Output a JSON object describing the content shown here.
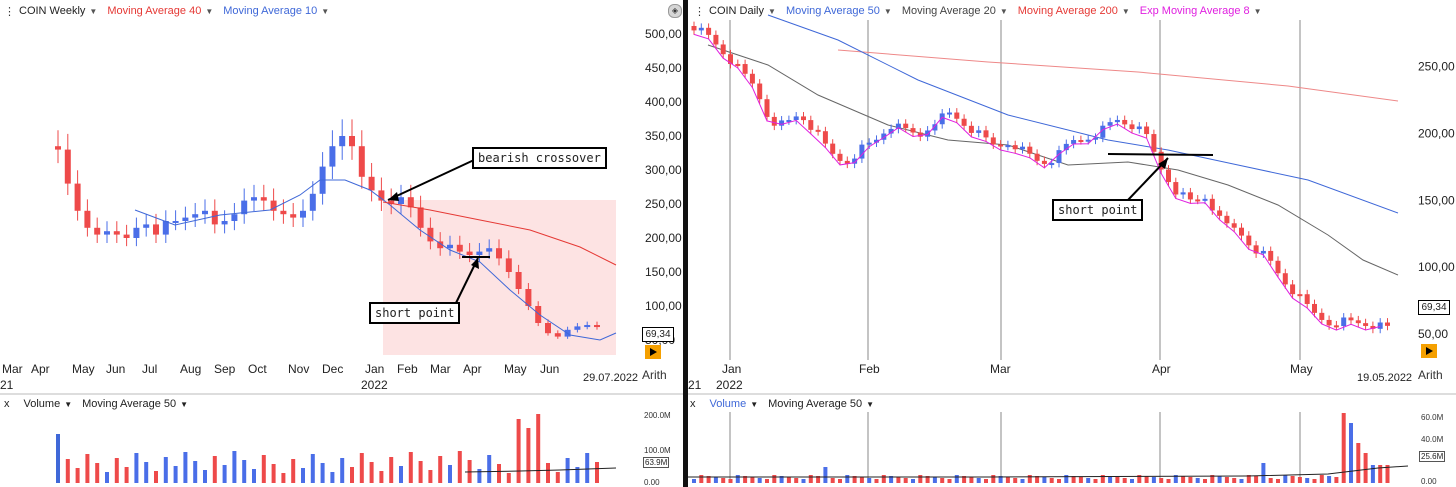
{
  "left": {
    "symbol": "COIN Weekly",
    "indicators": [
      {
        "label": "Moving Average 40",
        "color": "#e53935"
      },
      {
        "label": "Moving Average 10",
        "color": "#3f68d8"
      }
    ],
    "y_ticks": [
      "500,00",
      "450,00",
      "400,00",
      "350,00",
      "300,00",
      "250,00",
      "200,00",
      "150,00",
      "100,00",
      "50,00"
    ],
    "x_ticks": [
      "Mar",
      "Apr",
      "May",
      "Jun",
      "Jul",
      "Aug",
      "Sep",
      "Oct",
      "Nov",
      "Dec",
      "Jan",
      "Feb",
      "Mar",
      "Apr",
      "May",
      "Jun"
    ],
    "year_label": "2022",
    "left_edge_label": "21",
    "date": "29.07.2022",
    "scale": "Arith",
    "last_price": "69,34",
    "annotations": {
      "crossover": "bearish crossover",
      "short": "short point"
    },
    "volume": {
      "title": "Volume",
      "ma": "Moving Average 50",
      "labels": [
        "200.0M",
        "100.0M",
        "0.00"
      ],
      "current": "63.9M"
    }
  },
  "right": {
    "symbol": "COIN Daily",
    "indicators": [
      {
        "label": "Moving Average 50",
        "color": "#3f68d8"
      },
      {
        "label": "Moving Average 20",
        "color": "#444444"
      },
      {
        "label": "Moving Average 200",
        "color": "#e53935"
      },
      {
        "label": "Exp Moving Average 8",
        "color": "#e020e0"
      }
    ],
    "y_ticks": [
      "250,00",
      "200,00",
      "150,00",
      "100,00",
      "50,00"
    ],
    "x_ticks": [
      "Jan",
      "Feb",
      "Mar",
      "Apr",
      "May"
    ],
    "year_label": "2022",
    "left_edge_label": "21",
    "date": "19.05.2022",
    "scale": "Arith",
    "last_price": "69,34",
    "annotations": {
      "short": "short point"
    },
    "volume": {
      "title": "Volume",
      "ma": "Moving Average 50",
      "labels": [
        "60.0M",
        "40.0M",
        "20.0M",
        "0.00"
      ],
      "current": "25.6M"
    }
  },
  "colors": {
    "up": "#4a6ee8",
    "down": "#ee4a4a",
    "fill": "#fde3e3"
  },
  "chart_data": [
    {
      "type": "candlestick",
      "title": "COIN Weekly",
      "ylim": [
        20,
        530
      ],
      "series": [
        {
          "name": "Moving Average 40"
        },
        {
          "name": "Moving Average 10"
        }
      ],
      "weekly_close": [
        330,
        280,
        240,
        215,
        205,
        210,
        205,
        200,
        215,
        220,
        205,
        225,
        225,
        230,
        235,
        240,
        220,
        225,
        235,
        255,
        260,
        255,
        240,
        235,
        230,
        240,
        265,
        305,
        335,
        350,
        335,
        290,
        270,
        255,
        250,
        260,
        245,
        215,
        195,
        185,
        190,
        180,
        175,
        180,
        185,
        170,
        150,
        125,
        100,
        75,
        60,
        55,
        65,
        70,
        72,
        69.34
      ]
    },
    {
      "type": "candlestick",
      "title": "COIN Daily",
      "ylim": [
        20,
        310
      ],
      "series": [
        {
          "name": "Moving Average 50"
        },
        {
          "name": "Moving Average 20"
        },
        {
          "name": "Moving Average 200"
        },
        {
          "name": "Exp Moving Average 8"
        }
      ],
      "last_close": 69.34
    }
  ]
}
